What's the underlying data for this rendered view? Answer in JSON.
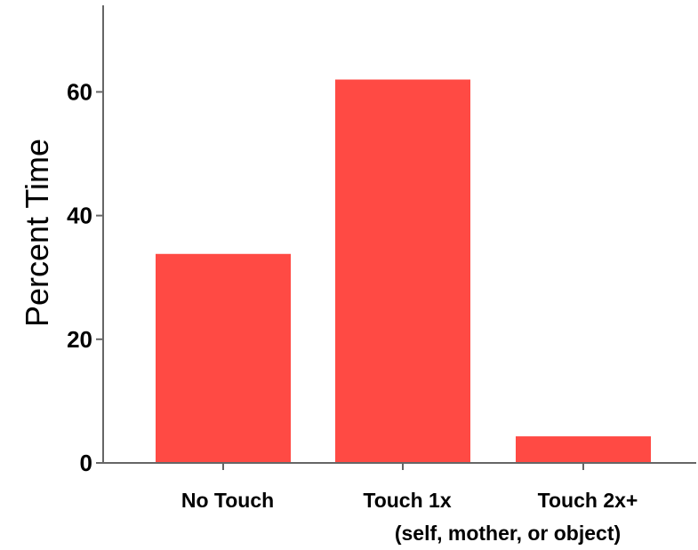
{
  "chart_data": {
    "type": "bar",
    "categories": [
      "No Touch",
      "Touch 1x",
      "Touch 2x+"
    ],
    "values": [
      33.8,
      62.0,
      4.3
    ],
    "title": "",
    "xlabel": "(self, mother, or object)",
    "ylabel": "Percent Time",
    "ylim": [
      0,
      74
    ],
    "yticks": [
      0,
      20,
      40,
      60
    ],
    "ytick_labels": [
      "0",
      "20",
      "40",
      "60"
    ],
    "bar_color": "#ff4a44",
    "axis_color": "#666666",
    "grid": false
  }
}
